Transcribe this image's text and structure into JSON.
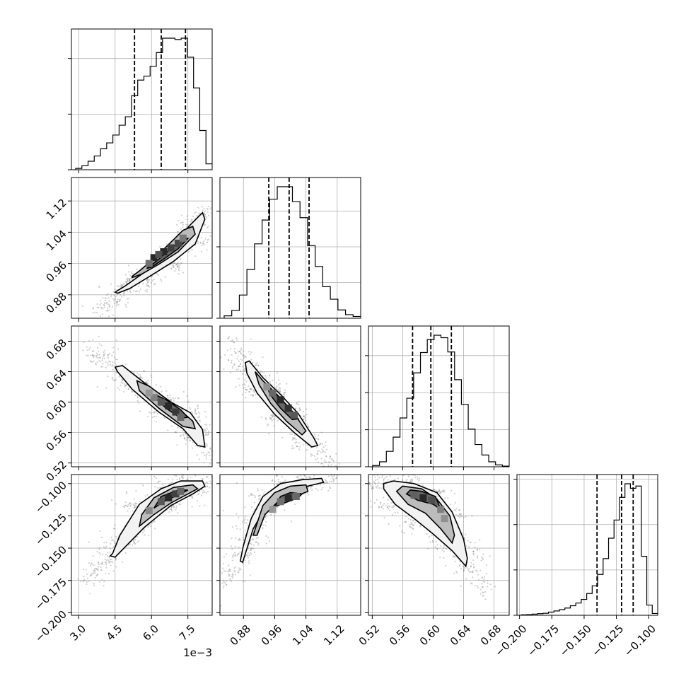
{
  "figure": {
    "type": "corner",
    "colors": {
      "axes": "#000000",
      "grid": "#b0b0b0",
      "scatter": "#777777",
      "contour_fill_outer": "#f2f2f2",
      "contour_fill_mid": "#bcbcbc",
      "contour_fill_inner": "#666666",
      "density_peak": "#000000"
    }
  },
  "chart_data": {
    "type": "corner",
    "n_params": 4,
    "parameters": [
      {
        "range": [
          0.0027,
          0.0085
        ],
        "ticks": [
          0.003,
          0.0045,
          0.006,
          0.0075
        ],
        "tick_labels": [
          "3.0",
          "4.5",
          "6.0",
          "7.5"
        ],
        "offset_label": "1e−3",
        "quantiles": [
          0.0053,
          0.0064,
          0.0074
        ],
        "hist_ticks": [
          0,
          1700,
          3400
        ]
      },
      {
        "range": [
          0.82,
          1.18
        ],
        "ticks": [
          0.88,
          0.96,
          1.04,
          1.12
        ],
        "tick_labels": [
          "0.88",
          "0.96",
          "1.04",
          "1.12"
        ],
        "quantiles": [
          0.945,
          0.997,
          1.048
        ],
        "hist_ticks": [
          0,
          1200,
          2400,
          3600
        ]
      },
      {
        "range": [
          0.515,
          0.7
        ],
        "ticks": [
          0.52,
          0.56,
          0.6,
          0.64,
          0.68
        ],
        "tick_labels": [
          "0.52",
          "0.56",
          "0.60",
          "0.64",
          "0.68"
        ],
        "quantiles": [
          0.573,
          0.597,
          0.624
        ],
        "hist_ticks": [
          0,
          1200,
          2400,
          3600
        ]
      },
      {
        "range": [
          -0.202,
          -0.093
        ],
        "ticks": [
          -0.2,
          -0.175,
          -0.15,
          -0.125,
          -0.1
        ],
        "tick_labels": [
          "−0.200",
          "−0.175",
          "−0.150",
          "−0.125",
          "−0.100"
        ],
        "quantiles": [
          -0.14,
          -0.121,
          -0.112
        ],
        "hist_ticks": [
          0,
          2000,
          4000,
          6000
        ]
      }
    ],
    "histograms": [
      [
        40,
        120,
        260,
        420,
        640,
        820,
        1060,
        1360,
        1620,
        2260,
        2740,
        2860,
        3160,
        3580,
        4020,
        4020,
        3980,
        4020,
        3440,
        2500,
        1200,
        180
      ],
      [
        80,
        260,
        780,
        1640,
        2500,
        3300,
        4000,
        4420,
        4420,
        3920,
        3380,
        2440,
        1740,
        1060,
        640,
        280,
        120,
        60
      ],
      [
        40,
        160,
        500,
        960,
        1580,
        2220,
        3040,
        3700,
        4120,
        4260,
        4180,
        3720,
        2820,
        2020,
        1220,
        720,
        380,
        160,
        60,
        20
      ],
      [
        20,
        30,
        50,
        70,
        90,
        140,
        190,
        250,
        320,
        420,
        540,
        700,
        960,
        1300,
        1800,
        2500,
        3400,
        4200,
        5200,
        5800,
        5600,
        5700,
        2600,
        450,
        80
      ]
    ],
    "pairs": [
      {
        "row": 1,
        "col": 0,
        "center": [
          0.0065,
          0.993
        ],
        "contours": [
          [
            [
              0.0045,
              0.887
            ],
            [
              0.0049,
              0.902
            ],
            [
              0.0057,
              0.937
            ],
            [
              0.0066,
              0.985
            ],
            [
              0.0076,
              1.059
            ],
            [
              0.0081,
              1.09
            ],
            [
              0.0082,
              1.073
            ],
            [
              0.0078,
              1.01
            ],
            [
              0.0069,
              0.965
            ],
            [
              0.006,
              0.93
            ],
            [
              0.0051,
              0.896
            ],
            [
              0.0046,
              0.884
            ]
          ],
          [
            [
              0.0052,
              0.927
            ],
            [
              0.0056,
              0.946
            ],
            [
              0.0064,
              0.99
            ],
            [
              0.0073,
              1.045
            ],
            [
              0.0077,
              1.055
            ],
            [
              0.0078,
              1.035
            ],
            [
              0.0071,
              0.99
            ],
            [
              0.0063,
              0.958
            ],
            [
              0.0056,
              0.933
            ],
            [
              0.0052,
              0.924
            ]
          ],
          [
            [
              0.0058,
              0.947
            ],
            [
              0.0062,
              0.966
            ],
            [
              0.0068,
              0.998
            ],
            [
              0.0073,
              1.026
            ],
            [
              0.0075,
              1.024
            ],
            [
              0.0071,
              0.998
            ],
            [
              0.0065,
              0.971
            ],
            [
              0.006,
              0.951
            ]
          ]
        ],
        "density_cells": [
          [
            0.0061,
            0.975,
            1
          ],
          [
            0.0065,
            0.99,
            1
          ],
          [
            0.0068,
            1.0,
            0.85
          ],
          [
            0.0071,
            1.012,
            0.8
          ],
          [
            0.0063,
            0.983,
            0.75
          ],
          [
            0.0059,
            0.96,
            0.55
          ],
          [
            0.0073,
            1.025,
            0.5
          ]
        ]
      },
      {
        "row": 2,
        "col": 0,
        "center": [
          0.0068,
          0.592
        ],
        "contours": [
          [
            [
              0.0045,
              0.646
            ],
            [
              0.0048,
              0.648
            ],
            [
              0.0058,
              0.623
            ],
            [
              0.0068,
              0.6
            ],
            [
              0.0076,
              0.586
            ],
            [
              0.0081,
              0.564
            ],
            [
              0.0082,
              0.541
            ],
            [
              0.0079,
              0.543
            ],
            [
              0.0073,
              0.565
            ],
            [
              0.0063,
              0.587
            ],
            [
              0.0052,
              0.617
            ],
            [
              0.0046,
              0.64
            ]
          ],
          [
            [
              0.0054,
              0.628
            ],
            [
              0.0059,
              0.621
            ],
            [
              0.0068,
              0.6
            ],
            [
              0.0077,
              0.575
            ],
            [
              0.0078,
              0.565
            ],
            [
              0.0073,
              0.568
            ],
            [
              0.0063,
              0.592
            ],
            [
              0.0055,
              0.615
            ]
          ],
          [
            [
              0.0062,
              0.609
            ],
            [
              0.0066,
              0.603
            ],
            [
              0.0072,
              0.59
            ],
            [
              0.0075,
              0.58
            ],
            [
              0.0072,
              0.579
            ],
            [
              0.0066,
              0.592
            ],
            [
              0.0062,
              0.604
            ]
          ]
        ],
        "density_cells": [
          [
            0.0067,
            0.595,
            1
          ],
          [
            0.007,
            0.587,
            0.9
          ],
          [
            0.0064,
            0.6,
            0.7
          ],
          [
            0.0072,
            0.58,
            0.6
          ],
          [
            0.0061,
            0.606,
            0.45
          ],
          [
            0.0059,
            0.612,
            0.3
          ]
        ]
      },
      {
        "row": 3,
        "col": 0,
        "center": [
          0.0067,
          -0.113
        ],
        "contours": [
          [
            [
              0.0043,
              -0.156
            ],
            [
              0.0045,
              -0.157
            ],
            [
              0.0057,
              -0.134
            ],
            [
              0.0068,
              -0.117
            ],
            [
              0.0077,
              -0.108
            ],
            [
              0.0082,
              -0.102
            ],
            [
              0.0081,
              -0.098
            ],
            [
              0.0072,
              -0.098
            ],
            [
              0.0064,
              -0.104
            ],
            [
              0.0055,
              -0.116
            ],
            [
              0.0047,
              -0.14
            ],
            [
              0.0044,
              -0.154
            ]
          ],
          [
            [
              0.0055,
              -0.133
            ],
            [
              0.0061,
              -0.124
            ],
            [
              0.0068,
              -0.115
            ],
            [
              0.0075,
              -0.108
            ],
            [
              0.0079,
              -0.104
            ],
            [
              0.0077,
              -0.101
            ],
            [
              0.0069,
              -0.103
            ],
            [
              0.0061,
              -0.111
            ],
            [
              0.0056,
              -0.124
            ]
          ],
          [
            [
              0.0061,
              -0.119
            ],
            [
              0.0066,
              -0.113
            ],
            [
              0.0072,
              -0.108
            ],
            [
              0.0075,
              -0.105
            ],
            [
              0.0071,
              -0.105
            ],
            [
              0.0064,
              -0.11
            ]
          ]
        ],
        "density_cells": [
          [
            0.0067,
            -0.111,
            1
          ],
          [
            0.007,
            -0.108,
            0.85
          ],
          [
            0.0064,
            -0.114,
            0.7
          ],
          [
            0.0072,
            -0.106,
            0.6
          ],
          [
            0.0059,
            -0.121,
            0.4
          ]
        ]
      },
      {
        "row": 2,
        "col": 1,
        "center": [
          0.99,
          0.597
        ],
        "contours": [
          [
            [
              0.885,
              0.652
            ],
            [
              0.895,
              0.654
            ],
            [
              0.93,
              0.632
            ],
            [
              0.975,
              0.61
            ],
            [
              1.02,
              0.585
            ],
            [
              1.06,
              0.553
            ],
            [
              1.07,
              0.543
            ],
            [
              1.055,
              0.541
            ],
            [
              1.01,
              0.56
            ],
            [
              0.96,
              0.584
            ],
            [
              0.915,
              0.612
            ],
            [
              0.889,
              0.638
            ]
          ],
          [
            [
              0.91,
              0.64
            ],
            [
              0.93,
              0.628
            ],
            [
              0.97,
              0.608
            ],
            [
              1.01,
              0.585
            ],
            [
              1.04,
              0.562
            ],
            [
              1.03,
              0.557
            ],
            [
              0.99,
              0.575
            ],
            [
              0.95,
              0.598
            ],
            [
              0.92,
              0.623
            ]
          ],
          [
            [
              0.94,
              0.622
            ],
            [
              0.96,
              0.612
            ],
            [
              0.995,
              0.594
            ],
            [
              1.02,
              0.578
            ],
            [
              1.005,
              0.577
            ],
            [
              0.975,
              0.592
            ],
            [
              0.948,
              0.61
            ]
          ]
        ],
        "density_cells": [
          [
            0.975,
            0.603,
            1
          ],
          [
            0.995,
            0.592,
            0.95
          ],
          [
            0.955,
            0.612,
            0.6
          ],
          [
            1.01,
            0.583,
            0.7
          ],
          [
            0.94,
            0.62,
            0.35
          ]
        ]
      },
      {
        "row": 3,
        "col": 1,
        "center": [
          0.995,
          -0.113
        ],
        "contours": [
          [
            [
              0.872,
              -0.16
            ],
            [
              0.878,
              -0.161
            ],
            [
              0.905,
              -0.135
            ],
            [
              0.94,
              -0.117
            ],
            [
              0.98,
              -0.108
            ],
            [
              1.03,
              -0.103
            ],
            [
              1.085,
              -0.099
            ],
            [
              1.08,
              -0.096
            ],
            [
              1.03,
              -0.097
            ],
            [
              0.975,
              -0.1
            ],
            [
              0.93,
              -0.11
            ],
            [
              0.9,
              -0.127
            ],
            [
              0.88,
              -0.148
            ]
          ],
          [
            [
              0.905,
              -0.14
            ],
            [
              0.915,
              -0.14
            ],
            [
              0.935,
              -0.124
            ],
            [
              0.965,
              -0.115
            ],
            [
              1.005,
              -0.111
            ],
            [
              1.045,
              -0.106
            ],
            [
              1.04,
              -0.101
            ],
            [
              1.0,
              -0.102
            ],
            [
              0.96,
              -0.107
            ],
            [
              0.93,
              -0.117
            ]
          ],
          [
            [
              0.96,
              -0.118
            ],
            [
              0.985,
              -0.115
            ],
            [
              1.02,
              -0.111
            ],
            [
              1.03,
              -0.108
            ],
            [
              1.0,
              -0.107
            ],
            [
              0.975,
              -0.11
            ]
          ]
        ],
        "density_cells": [
          [
            0.995,
            -0.111,
            1
          ],
          [
            1.015,
            -0.11,
            0.6
          ],
          [
            0.975,
            -0.114,
            0.55
          ],
          [
            0.955,
            -0.12,
            0.3
          ]
        ]
      },
      {
        "row": 3,
        "col": 2,
        "center": [
          0.587,
          -0.111
        ],
        "contours": [
          [
            [
              0.535,
              -0.104
            ],
            [
              0.55,
              -0.116
            ],
            [
              0.575,
              -0.127
            ],
            [
              0.6,
              -0.139
            ],
            [
              0.625,
              -0.152
            ],
            [
              0.643,
              -0.164
            ],
            [
              0.645,
              -0.158
            ],
            [
              0.64,
              -0.143
            ],
            [
              0.625,
              -0.122
            ],
            [
              0.605,
              -0.107
            ],
            [
              0.575,
              -0.1
            ],
            [
              0.548,
              -0.098
            ],
            [
              0.535,
              -0.1
            ]
          ],
          [
            [
              0.552,
              -0.106
            ],
            [
              0.567,
              -0.116
            ],
            [
              0.59,
              -0.123
            ],
            [
              0.61,
              -0.135
            ],
            [
              0.625,
              -0.146
            ],
            [
              0.628,
              -0.14
            ],
            [
              0.622,
              -0.125
            ],
            [
              0.605,
              -0.112
            ],
            [
              0.585,
              -0.104
            ],
            [
              0.56,
              -0.102
            ]
          ],
          [
            [
              0.565,
              -0.108
            ],
            [
              0.58,
              -0.113
            ],
            [
              0.6,
              -0.116
            ],
            [
              0.61,
              -0.12
            ],
            [
              0.603,
              -0.11
            ],
            [
              0.585,
              -0.106
            ],
            [
              0.57,
              -0.105
            ]
          ]
        ],
        "density_cells": [
          [
            0.587,
            -0.111,
            1
          ],
          [
            0.598,
            -0.113,
            0.75
          ],
          [
            0.575,
            -0.109,
            0.65
          ],
          [
            0.61,
            -0.12,
            0.45
          ],
          [
            0.615,
            -0.127,
            0.35
          ]
        ]
      }
    ]
  }
}
